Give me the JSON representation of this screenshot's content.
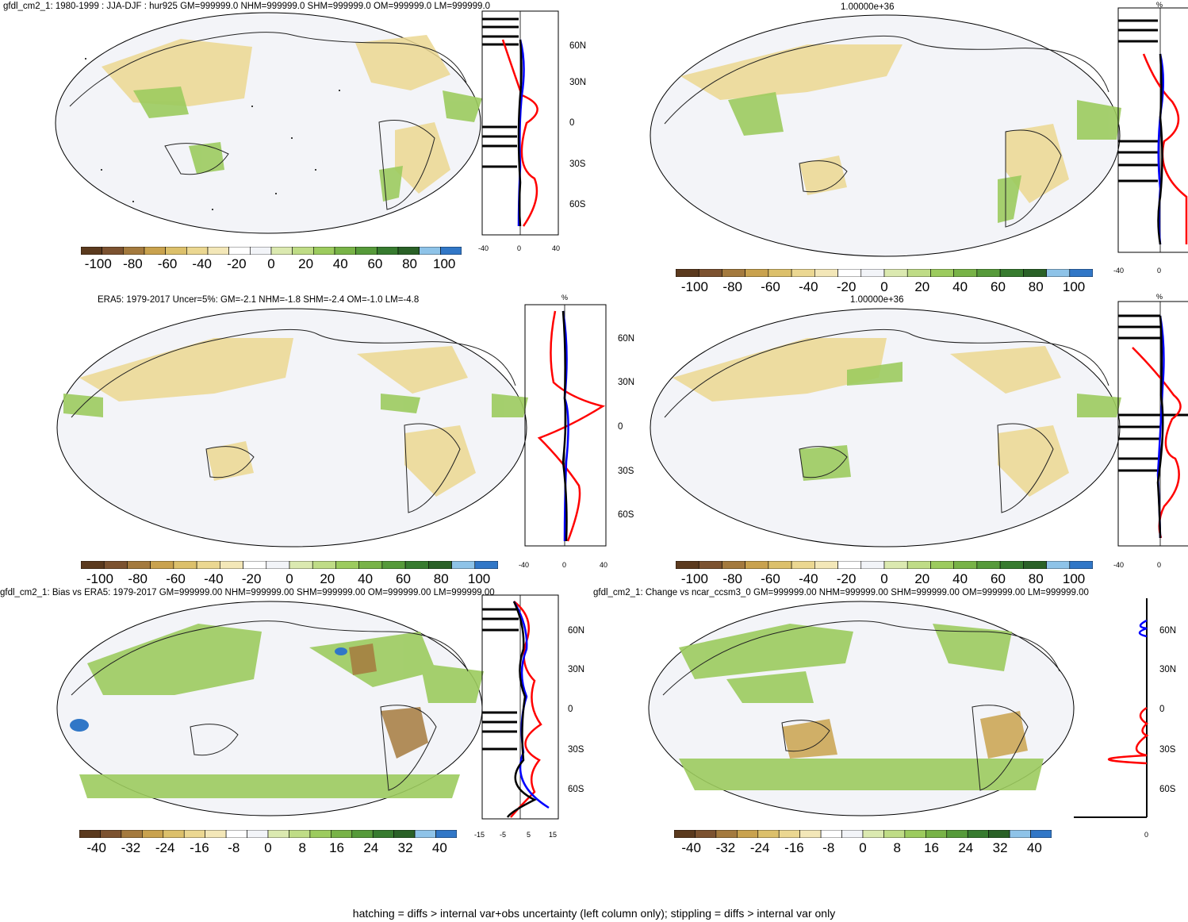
{
  "figure": {
    "footer": "hatching = diffs > internal var+obs uncertainty (left column only); stippling = diffs > internal var only",
    "colors": {
      "palette": [
        "#5b3a1e",
        "#7c5230",
        "#a47a3e",
        "#c9a24e",
        "#dcc06b",
        "#ebd791",
        "#f3e7b8",
        "#ffffff",
        "#f2f4f8",
        "#dbe9b0",
        "#bfdc86",
        "#9ccb5e",
        "#78b347",
        "#569a3a",
        "#377b2f",
        "#2a6127",
        "#8ec3e8",
        "#3177c7"
      ],
      "red": "#ff0000",
      "blue": "#0000ff",
      "black": "#000000"
    }
  },
  "panels": [
    {
      "id": "top-left",
      "title": "gfdl_cm2_1: 1980-1999 : JJA-DJF : hur925 GM=999999.0 NHM=999999.0 SHM=999999.0 OM=999999.0 LM=999999.0",
      "zonal": {
        "units": "",
        "xticks": [
          "-40",
          "0",
          "40"
        ],
        "lat_ticks": [
          "60N",
          "30N",
          "0",
          "30S",
          "60S"
        ]
      },
      "colorbar_ticks": [
        "-100",
        "-80",
        "-60",
        "-40",
        "-20",
        "0",
        "20",
        "40",
        "60",
        "80",
        "100"
      ]
    },
    {
      "id": "top-right",
      "title": "1.00000e+36",
      "zonal": {
        "units": "%",
        "xticks": [
          "-40",
          "0"
        ],
        "lat_ticks": []
      },
      "colorbar_ticks": [
        "-100",
        "-80",
        "-60",
        "-40",
        "-20",
        "0",
        "20",
        "40",
        "60",
        "80",
        "100"
      ]
    },
    {
      "id": "middle-left",
      "title": "ERA5: 1979-2017 Uncer=5%: GM=-2.1 NHM=-1.8 SHM=-2.4 OM=-1.0 LM=-4.8",
      "zonal": {
        "units": "%",
        "xticks": [
          "-40",
          "0",
          "40"
        ],
        "lat_ticks": [
          "60N",
          "30N",
          "0",
          "30S",
          "60S"
        ]
      },
      "colorbar_ticks": [
        "-100",
        "-80",
        "-60",
        "-40",
        "-20",
        "0",
        "20",
        "40",
        "60",
        "80",
        "100"
      ]
    },
    {
      "id": "middle-right",
      "title": "1.00000e+36",
      "zonal": {
        "units": "%",
        "xticks": [
          "-40",
          "0"
        ],
        "lat_ticks": []
      },
      "colorbar_ticks": [
        "-100",
        "-80",
        "-60",
        "-40",
        "-20",
        "0",
        "20",
        "40",
        "60",
        "80",
        "100"
      ]
    },
    {
      "id": "bottom-left",
      "title": "gfdl_cm2_1: Bias vs ERA5: 1979-2017 GM=999999.00 NHM=999999.00 SHM=999999.00 OM=999999.00 LM=999999.00",
      "zonal": {
        "units": "",
        "xticks": [
          "-15",
          "-5",
          "5",
          "15"
        ],
        "lat_ticks": [
          "60N",
          "30N",
          "0",
          "30S",
          "60S"
        ]
      },
      "colorbar_ticks": [
        "-40",
        "-32",
        "-24",
        "-16",
        "-8",
        "0",
        "8",
        "16",
        "24",
        "32",
        "40"
      ]
    },
    {
      "id": "bottom-right",
      "title": "gfdl_cm2_1: Change vs ncar_ccsm3_0 GM=999999.00 NHM=999999.00 SHM=999999.00 OM=999999.00 LM=999999.00",
      "zonal": {
        "units": "",
        "xticks": [
          "0"
        ],
        "lat_ticks": [
          "60N",
          "30N",
          "0",
          "30S",
          "60S"
        ]
      },
      "colorbar_ticks": [
        "-40",
        "-32",
        "-24",
        "-16",
        "-8",
        "0",
        "8",
        "16",
        "24",
        "32",
        "40"
      ]
    }
  ]
}
